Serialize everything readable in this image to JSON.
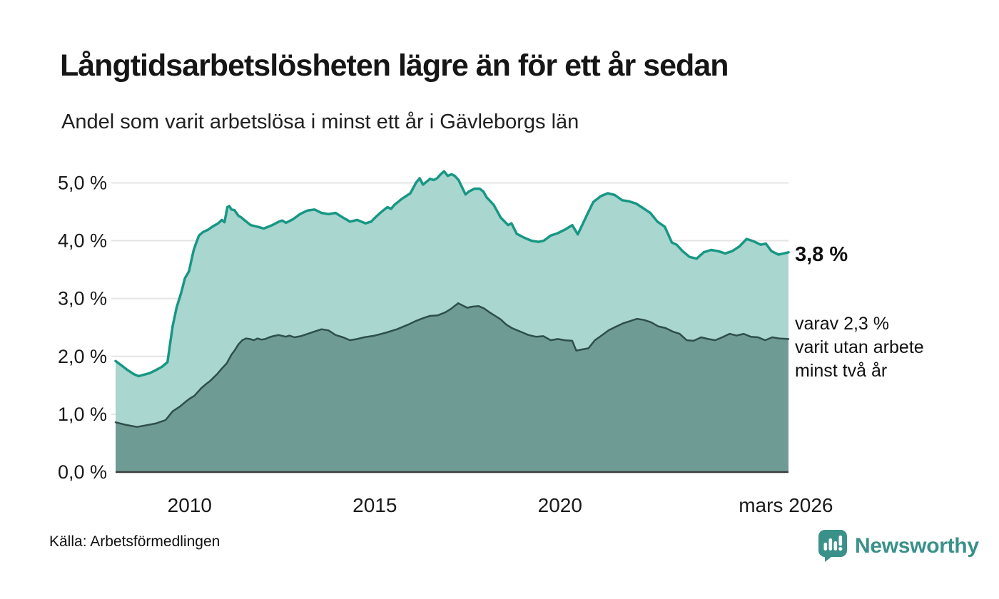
{
  "header": {
    "title": "Långtidsarbetslösheten lägre än för ett år sedan",
    "subtitle": "Andel som varit arbetslösa i minst ett år i Gävleborgs län"
  },
  "annotations": {
    "latest_total": "3,8 %",
    "latest_two_years": "varav 2,3 %\nvarit utan arbete\nminst två år"
  },
  "footer": {
    "source": "Källa: Arbetsförmedlingen",
    "brand_name": "Newsworthy",
    "brand_color": "#3a9189"
  },
  "chart_data": {
    "type": "area",
    "title": "Långtidsarbetslösheten lägre än för ett år sedan",
    "subtitle": "Andel som varit arbetslösa i minst ett år i Gävleborgs län",
    "grid": true,
    "gridline_color": "#e4e4e4",
    "axis_line_color": "#3d3d3d",
    "tick_label_color": "#1a1a1a",
    "x_axis": {
      "range": [
        2008.0,
        2026.17
      ],
      "ticks": [
        {
          "label": "2010",
          "value": 2010
        },
        {
          "label": "2015",
          "value": 2015
        },
        {
          "label": "2020",
          "value": 2020
        },
        {
          "label": "mars 2026",
          "value": 2026.1
        }
      ]
    },
    "y_axis": {
      "range": [
        0,
        5.4
      ],
      "unit": "%",
      "ticks": [
        {
          "label": "0,0 %",
          "value": 0
        },
        {
          "label": "1,0 %",
          "value": 1
        },
        {
          "label": "2,0 %",
          "value": 2
        },
        {
          "label": "3,0 %",
          "value": 3
        },
        {
          "label": "4,0 %",
          "value": 4
        },
        {
          "label": "5,0 %",
          "value": 5
        }
      ]
    },
    "series": [
      {
        "name": "Andel arbetslösa minst ett år",
        "latest_value": 3.8,
        "end_label": "3,8 %",
        "line_color": "#179784",
        "fill_color": "#a9d6cf",
        "line_width": 3.5,
        "points": [
          [
            2008.0,
            1.92
          ],
          [
            2008.17,
            1.84
          ],
          [
            2008.33,
            1.76
          ],
          [
            2008.5,
            1.69
          ],
          [
            2008.62,
            1.66
          ],
          [
            2008.75,
            1.68
          ],
          [
            2008.92,
            1.71
          ],
          [
            2009.08,
            1.76
          ],
          [
            2009.25,
            1.82
          ],
          [
            2009.4,
            1.9
          ],
          [
            2009.54,
            2.52
          ],
          [
            2009.65,
            2.85
          ],
          [
            2009.77,
            3.1
          ],
          [
            2009.87,
            3.35
          ],
          [
            2009.98,
            3.47
          ],
          [
            2010.06,
            3.7
          ],
          [
            2010.11,
            3.84
          ],
          [
            2010.17,
            3.95
          ],
          [
            2010.25,
            4.09
          ],
          [
            2010.36,
            4.15
          ],
          [
            2010.5,
            4.19
          ],
          [
            2010.63,
            4.25
          ],
          [
            2010.77,
            4.3
          ],
          [
            2010.87,
            4.36
          ],
          [
            2010.94,
            4.32
          ],
          [
            2011.02,
            4.58
          ],
          [
            2011.07,
            4.6
          ],
          [
            2011.13,
            4.54
          ],
          [
            2011.21,
            4.53
          ],
          [
            2011.26,
            4.48
          ],
          [
            2011.32,
            4.43
          ],
          [
            2011.4,
            4.4
          ],
          [
            2011.45,
            4.37
          ],
          [
            2011.65,
            4.27
          ],
          [
            2011.78,
            4.25
          ],
          [
            2011.9,
            4.23
          ],
          [
            2012.0,
            4.21
          ],
          [
            2012.23,
            4.27
          ],
          [
            2012.41,
            4.33
          ],
          [
            2012.5,
            4.35
          ],
          [
            2012.6,
            4.31
          ],
          [
            2012.79,
            4.37
          ],
          [
            2012.98,
            4.46
          ],
          [
            2013.17,
            4.52
          ],
          [
            2013.37,
            4.54
          ],
          [
            2013.56,
            4.48
          ],
          [
            2013.75,
            4.46
          ],
          [
            2013.94,
            4.48
          ],
          [
            2014.14,
            4.4
          ],
          [
            2014.33,
            4.33
          ],
          [
            2014.52,
            4.36
          ],
          [
            2014.75,
            4.3
          ],
          [
            2014.9,
            4.33
          ],
          [
            2015.04,
            4.42
          ],
          [
            2015.18,
            4.5
          ],
          [
            2015.34,
            4.58
          ],
          [
            2015.44,
            4.55
          ],
          [
            2015.53,
            4.62
          ],
          [
            2015.72,
            4.72
          ],
          [
            2015.96,
            4.82
          ],
          [
            2016.11,
            5.0
          ],
          [
            2016.21,
            5.08
          ],
          [
            2016.3,
            4.97
          ],
          [
            2016.4,
            5.02
          ],
          [
            2016.49,
            5.07
          ],
          [
            2016.59,
            5.05
          ],
          [
            2016.68,
            5.08
          ],
          [
            2016.78,
            5.15
          ],
          [
            2016.87,
            5.2
          ],
          [
            2016.97,
            5.12
          ],
          [
            2017.07,
            5.15
          ],
          [
            2017.16,
            5.12
          ],
          [
            2017.26,
            5.05
          ],
          [
            2017.35,
            4.93
          ],
          [
            2017.45,
            4.8
          ],
          [
            2017.54,
            4.85
          ],
          [
            2017.69,
            4.9
          ],
          [
            2017.83,
            4.9
          ],
          [
            2017.93,
            4.85
          ],
          [
            2018.02,
            4.75
          ],
          [
            2018.21,
            4.62
          ],
          [
            2018.4,
            4.4
          ],
          [
            2018.6,
            4.27
          ],
          [
            2018.69,
            4.3
          ],
          [
            2018.83,
            4.12
          ],
          [
            2019.04,
            4.05
          ],
          [
            2019.23,
            4.0
          ],
          [
            2019.42,
            3.98
          ],
          [
            2019.56,
            4.0
          ],
          [
            2019.75,
            4.09
          ],
          [
            2019.94,
            4.13
          ],
          [
            2020.13,
            4.19
          ],
          [
            2020.33,
            4.27
          ],
          [
            2020.48,
            4.11
          ],
          [
            2020.62,
            4.3
          ],
          [
            2020.77,
            4.5
          ],
          [
            2020.9,
            4.67
          ],
          [
            2021.1,
            4.77
          ],
          [
            2021.29,
            4.82
          ],
          [
            2021.48,
            4.79
          ],
          [
            2021.68,
            4.7
          ],
          [
            2021.87,
            4.68
          ],
          [
            2022.06,
            4.64
          ],
          [
            2022.25,
            4.56
          ],
          [
            2022.44,
            4.48
          ],
          [
            2022.63,
            4.33
          ],
          [
            2022.83,
            4.24
          ],
          [
            2023.02,
            3.97
          ],
          [
            2023.15,
            3.93
          ],
          [
            2023.31,
            3.82
          ],
          [
            2023.5,
            3.72
          ],
          [
            2023.69,
            3.69
          ],
          [
            2023.88,
            3.8
          ],
          [
            2024.08,
            3.84
          ],
          [
            2024.27,
            3.82
          ],
          [
            2024.46,
            3.78
          ],
          [
            2024.65,
            3.82
          ],
          [
            2024.84,
            3.9
          ],
          [
            2025.04,
            4.03
          ],
          [
            2025.23,
            3.99
          ],
          [
            2025.42,
            3.93
          ],
          [
            2025.56,
            3.95
          ],
          [
            2025.71,
            3.82
          ],
          [
            2025.9,
            3.76
          ],
          [
            2026.04,
            3.78
          ],
          [
            2026.17,
            3.8
          ]
        ]
      },
      {
        "name": "Varav utan arbete minst två år",
        "latest_value": 2.3,
        "end_label": "varav 2,3 % varit utan arbete minst två år",
        "line_color": "#2e4f4a",
        "fill_color": "#6f9b95",
        "line_width": 2.5,
        "points": [
          [
            2008.0,
            0.86
          ],
          [
            2008.25,
            0.82
          ],
          [
            2008.58,
            0.78
          ],
          [
            2008.83,
            0.81
          ],
          [
            2009.08,
            0.84
          ],
          [
            2009.35,
            0.9
          ],
          [
            2009.54,
            1.05
          ],
          [
            2009.73,
            1.13
          ],
          [
            2009.9,
            1.22
          ],
          [
            2010.0,
            1.27
          ],
          [
            2010.13,
            1.32
          ],
          [
            2010.31,
            1.45
          ],
          [
            2010.44,
            1.52
          ],
          [
            2010.56,
            1.58
          ],
          [
            2010.75,
            1.7
          ],
          [
            2010.87,
            1.79
          ],
          [
            2011.0,
            1.88
          ],
          [
            2011.13,
            2.03
          ],
          [
            2011.21,
            2.1
          ],
          [
            2011.32,
            2.21
          ],
          [
            2011.42,
            2.28
          ],
          [
            2011.52,
            2.31
          ],
          [
            2011.63,
            2.3
          ],
          [
            2011.73,
            2.28
          ],
          [
            2011.83,
            2.31
          ],
          [
            2011.94,
            2.29
          ],
          [
            2012.04,
            2.3
          ],
          [
            2012.15,
            2.33
          ],
          [
            2012.25,
            2.35
          ],
          [
            2012.4,
            2.37
          ],
          [
            2012.6,
            2.34
          ],
          [
            2012.69,
            2.36
          ],
          [
            2012.83,
            2.33
          ],
          [
            2013.0,
            2.35
          ],
          [
            2013.19,
            2.39
          ],
          [
            2013.37,
            2.43
          ],
          [
            2013.56,
            2.47
          ],
          [
            2013.75,
            2.45
          ],
          [
            2013.94,
            2.37
          ],
          [
            2014.14,
            2.33
          ],
          [
            2014.33,
            2.28
          ],
          [
            2014.52,
            2.3
          ],
          [
            2014.71,
            2.33
          ],
          [
            2015.0,
            2.36
          ],
          [
            2015.3,
            2.41
          ],
          [
            2015.6,
            2.47
          ],
          [
            2015.9,
            2.55
          ],
          [
            2016.1,
            2.61
          ],
          [
            2016.3,
            2.66
          ],
          [
            2016.49,
            2.7
          ],
          [
            2016.7,
            2.71
          ],
          [
            2016.9,
            2.76
          ],
          [
            2017.05,
            2.82
          ],
          [
            2017.15,
            2.87
          ],
          [
            2017.25,
            2.92
          ],
          [
            2017.37,
            2.88
          ],
          [
            2017.5,
            2.84
          ],
          [
            2017.63,
            2.86
          ],
          [
            2017.8,
            2.87
          ],
          [
            2017.95,
            2.83
          ],
          [
            2018.1,
            2.76
          ],
          [
            2018.25,
            2.7
          ],
          [
            2018.4,
            2.64
          ],
          [
            2018.55,
            2.55
          ],
          [
            2018.7,
            2.49
          ],
          [
            2018.85,
            2.45
          ],
          [
            2019.0,
            2.41
          ],
          [
            2019.15,
            2.37
          ],
          [
            2019.35,
            2.34
          ],
          [
            2019.55,
            2.35
          ],
          [
            2019.75,
            2.28
          ],
          [
            2019.94,
            2.3
          ],
          [
            2020.13,
            2.28
          ],
          [
            2020.33,
            2.27
          ],
          [
            2020.44,
            2.1
          ],
          [
            2020.6,
            2.12
          ],
          [
            2020.77,
            2.14
          ],
          [
            2020.94,
            2.28
          ],
          [
            2021.12,
            2.36
          ],
          [
            2021.31,
            2.45
          ],
          [
            2021.5,
            2.51
          ],
          [
            2021.7,
            2.57
          ],
          [
            2021.89,
            2.61
          ],
          [
            2022.08,
            2.65
          ],
          [
            2022.27,
            2.63
          ],
          [
            2022.46,
            2.59
          ],
          [
            2022.65,
            2.52
          ],
          [
            2022.85,
            2.49
          ],
          [
            2023.04,
            2.43
          ],
          [
            2023.23,
            2.39
          ],
          [
            2023.42,
            2.28
          ],
          [
            2023.61,
            2.27
          ],
          [
            2023.81,
            2.33
          ],
          [
            2024.0,
            2.3
          ],
          [
            2024.19,
            2.28
          ],
          [
            2024.38,
            2.33
          ],
          [
            2024.58,
            2.39
          ],
          [
            2024.77,
            2.36
          ],
          [
            2024.96,
            2.39
          ],
          [
            2025.15,
            2.34
          ],
          [
            2025.35,
            2.33
          ],
          [
            2025.54,
            2.28
          ],
          [
            2025.73,
            2.33
          ],
          [
            2025.92,
            2.31
          ],
          [
            2026.17,
            2.3
          ]
        ]
      }
    ]
  }
}
